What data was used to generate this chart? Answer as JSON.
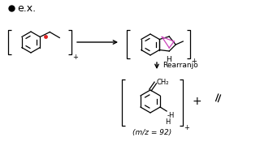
{
  "background_color": "#ffffff",
  "bullet_text": "e.x.",
  "bullet_color": "#000000",
  "arrow_color": "#000000",
  "rearranjo_label": "Rearranjo",
  "mz_label": "(m/z = 92)",
  "plus_label": "+",
  "bracket_color": "#000000",
  "pink_color": "#cc44bb",
  "red_dot_color": "#dd2222",
  "ring_color": "#000000",
  "text_color": "#000000",
  "charge_label": "⁺"
}
